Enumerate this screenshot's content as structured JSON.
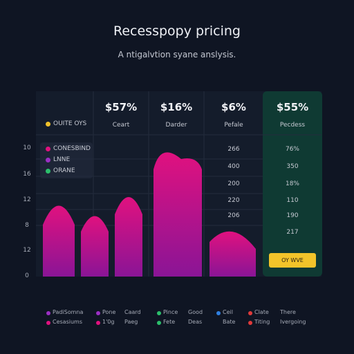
{
  "header": {
    "title": "Recesspopy pricing",
    "subtitle": "A ntigalvtion syane anslysis."
  },
  "table": {
    "row_label": "OUITE OYS",
    "columns": [
      {
        "price": "$57%",
        "name": "Ceart"
      },
      {
        "price": "$16%",
        "name": "Darder"
      },
      {
        "price": "$6%",
        "name": "Pefale"
      },
      {
        "price": "$55%",
        "name": "Pecdess"
      }
    ]
  },
  "legend": [
    "CONESBIND",
    "LNNE",
    "ORANE"
  ],
  "y_axis": [
    "10",
    "16",
    "12",
    "8",
    "12",
    "0"
  ],
  "column3_values": [
    "266",
    "400",
    "200",
    "220",
    "206"
  ],
  "column4_values": [
    "76%",
    "350",
    "18%",
    "110",
    "190",
    "217"
  ],
  "button": "OY WVE",
  "footer": [
    [
      "PadiSomna",
      "Pone",
      "Caard",
      "Pince",
      "Good",
      "Ceil",
      "Clate",
      "There"
    ],
    [
      "Cesasiums",
      "1'0g",
      "Paeg",
      "Fete",
      "Deas",
      "Bate",
      "Titing",
      "Ivergoing"
    ]
  ]
}
